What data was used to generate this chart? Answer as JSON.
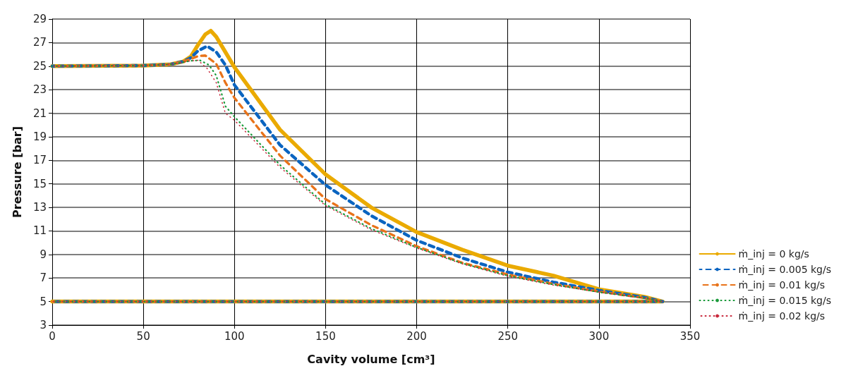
{
  "chart_data": {
    "type": "line",
    "xlabel": "Cavity volume [cm³]",
    "ylabel": "Pressure [bar]",
    "xlim": [
      0,
      350
    ],
    "xticks": [
      0,
      50,
      100,
      150,
      200,
      250,
      300,
      350
    ],
    "ylim": [
      3,
      29
    ],
    "yticks": [
      3,
      5,
      7,
      9,
      11,
      13,
      15,
      17,
      19,
      21,
      23,
      25,
      27,
      29
    ],
    "grid": true,
    "legend": "right",
    "marker": "none",
    "series": [
      {
        "name": "ṁ_inj = 0 kg/s",
        "color": "#eaaa00",
        "line_style": "solid",
        "x": [
          0,
          50,
          65,
          72,
          76,
          80,
          84,
          87,
          90,
          95,
          100,
          125,
          150,
          175,
          200,
          225,
          250,
          275,
          300,
          325,
          335,
          0
        ],
        "values": [
          25,
          25.05,
          25.15,
          25.4,
          25.8,
          26.8,
          27.7,
          28,
          27.5,
          26.2,
          24.9,
          19.6,
          15.8,
          13,
          10.9,
          9.4,
          8.05,
          7.2,
          6.05,
          5.4,
          5,
          5
        ]
      },
      {
        "name": "ṁ_inj = 0.005 kg/s",
        "color": "#0a64c0",
        "line_style": "dashed",
        "x": [
          0,
          50,
          65,
          72,
          76,
          80,
          85,
          90,
          95,
          100,
          125,
          150,
          175,
          200,
          225,
          250,
          275,
          300,
          325,
          335,
          0
        ],
        "values": [
          25,
          25.05,
          25.15,
          25.4,
          25.7,
          26.3,
          26.7,
          26.2,
          25.1,
          23.4,
          18.3,
          14.9,
          12.3,
          10.2,
          8.7,
          7.5,
          6.65,
          5.95,
          5.35,
          5,
          5
        ]
      },
      {
        "name": "ṁ_inj = 0.01 kg/s",
        "color": "#e8731a",
        "line_style": "dashed",
        "x": [
          0,
          50,
          65,
          72,
          76,
          80,
          84,
          90,
          95,
          100,
          125,
          150,
          175,
          200,
          225,
          250,
          275,
          300,
          325,
          335,
          0
        ],
        "values": [
          25,
          25.05,
          25.15,
          25.4,
          25.6,
          25.85,
          25.9,
          25.2,
          23.6,
          22.3,
          17.4,
          13.7,
          11.5,
          9.7,
          8.3,
          7.3,
          6.5,
          5.85,
          5.3,
          5,
          5
        ]
      },
      {
        "name": "ṁ_inj = 0.015 kg/s",
        "color": "#1a9a3a",
        "line_style": "dotted",
        "x": [
          0,
          50,
          65,
          72,
          76,
          81,
          86,
          90,
          95,
          100,
          125,
          150,
          175,
          200,
          225,
          250,
          275,
          300,
          325,
          335,
          0
        ],
        "values": [
          25,
          25.05,
          25.15,
          25.35,
          25.45,
          25.5,
          25.1,
          24.2,
          21.6,
          20.7,
          16.6,
          13.25,
          11.2,
          9.6,
          8.25,
          7.2,
          6.45,
          5.8,
          5.3,
          5,
          5
        ]
      },
      {
        "name": "ṁ_inj = 0.02 kg/s",
        "color": "#c8283c",
        "line_style": "dotted",
        "x": [
          0,
          50,
          65,
          72,
          76,
          80,
          85,
          90,
          95,
          100,
          125,
          150,
          175,
          200,
          225,
          250,
          275,
          300,
          325,
          335,
          0
        ],
        "values": [
          25,
          25.05,
          25.15,
          25.35,
          25.45,
          25.5,
          24.8,
          23.6,
          21,
          20.4,
          16.4,
          13.15,
          11.1,
          9.55,
          8.2,
          7.15,
          6.4,
          5.8,
          5.3,
          5,
          5
        ]
      }
    ]
  }
}
